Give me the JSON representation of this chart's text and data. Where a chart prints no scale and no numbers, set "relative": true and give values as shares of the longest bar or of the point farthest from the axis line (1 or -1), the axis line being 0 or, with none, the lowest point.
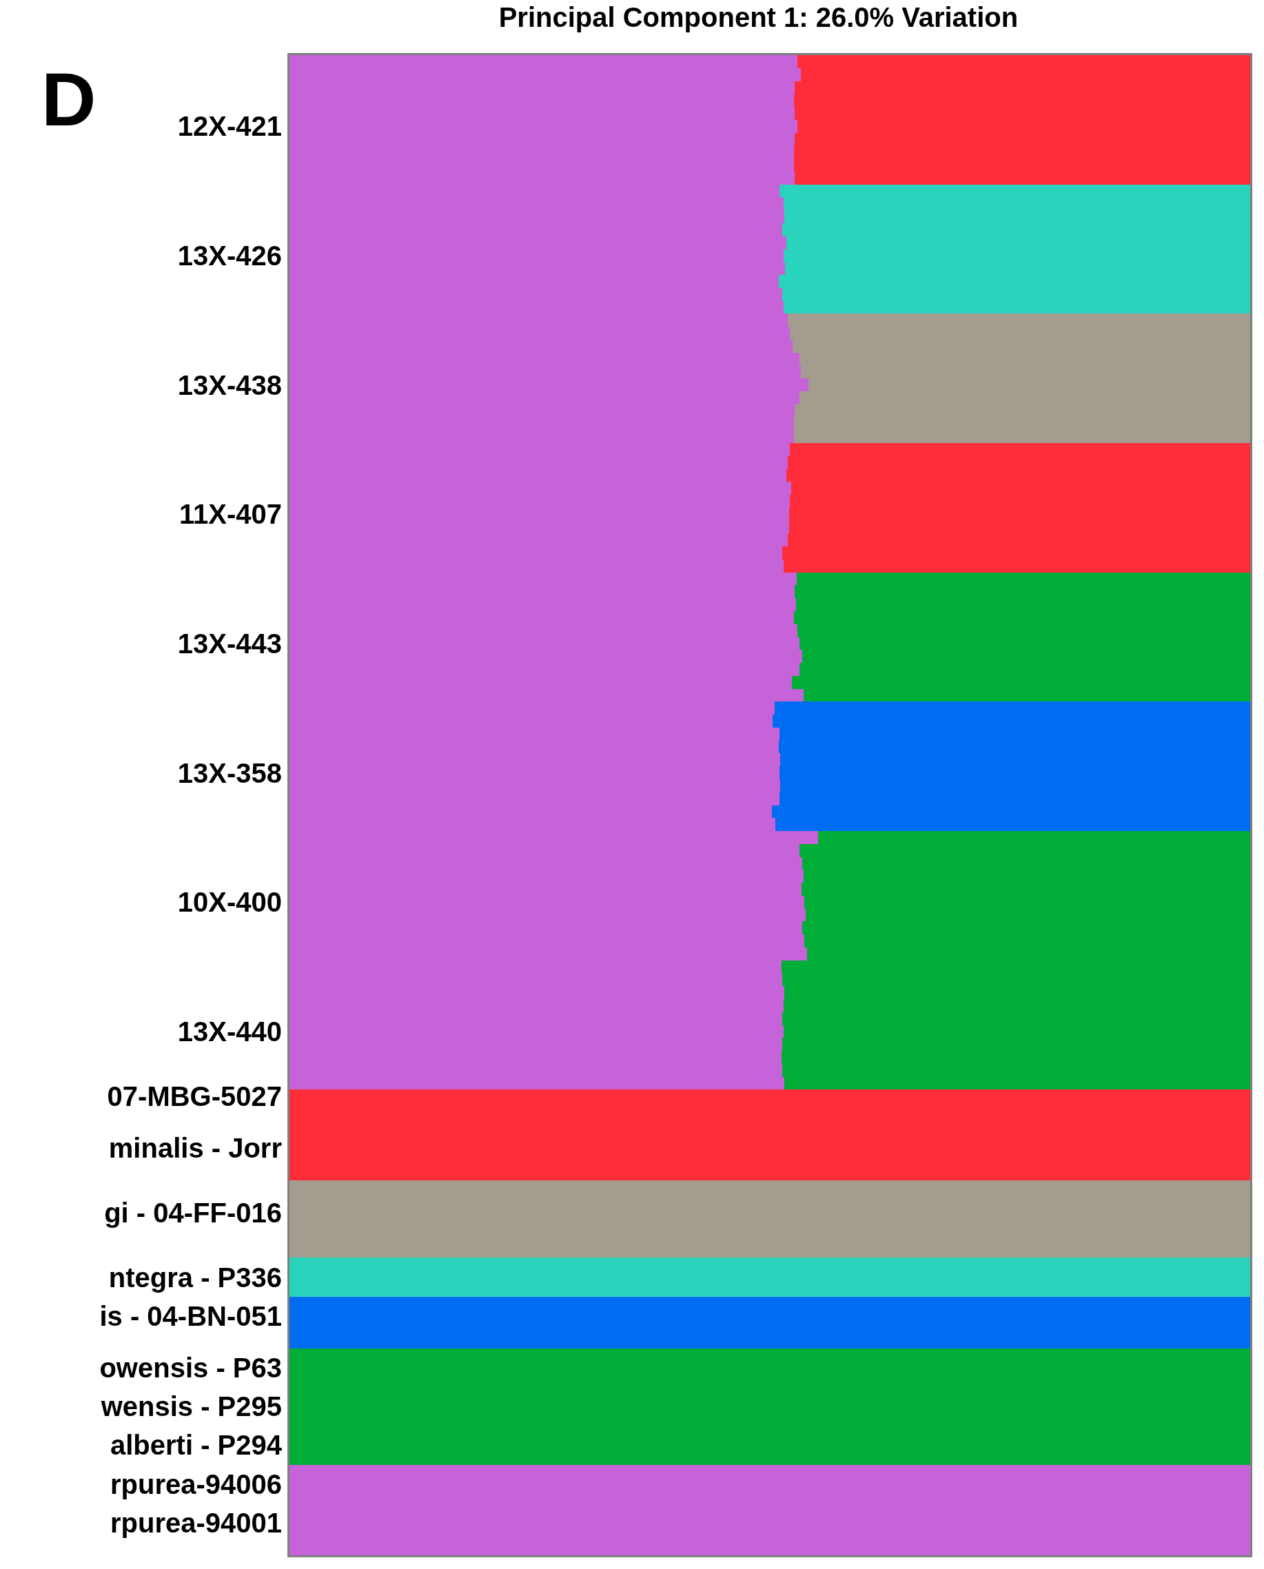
{
  "chart_data": {
    "type": "bar",
    "orientation": "horizontal",
    "stacked": true,
    "relative": true,
    "title": "Principal Component 1: 26.0% Variation",
    "annotations": [
      "D"
    ],
    "tick_labels": "y",
    "categories": [
      null,
      null,
      null,
      null,
      null,
      "12X-421",
      null,
      null,
      null,
      null,
      null,
      null,
      null,
      null,
      null,
      "13X-426",
      null,
      null,
      null,
      null,
      null,
      null,
      null,
      null,
      null,
      "13X-438",
      null,
      null,
      null,
      null,
      null,
      null,
      null,
      null,
      null,
      "11X-407",
      null,
      null,
      null,
      null,
      null,
      null,
      null,
      null,
      null,
      "13X-443",
      null,
      null,
      null,
      null,
      null,
      null,
      null,
      null,
      null,
      "13X-358",
      null,
      null,
      null,
      null,
      null,
      null,
      null,
      null,
      null,
      "10X-400",
      null,
      null,
      null,
      null,
      null,
      null,
      null,
      null,
      null,
      "13X-440",
      null,
      null,
      null,
      null,
      "07-MBG-5027",
      null,
      null,
      null,
      "minalis - Jorr",
      null,
      null,
      null,
      null,
      "gi - 04-FF-016",
      null,
      null,
      null,
      null,
      "ntegra - P336",
      null,
      null,
      "is - 04-BN-051",
      null,
      null,
      null,
      "owensis - P63",
      null,
      null,
      "wensis - P295",
      null,
      null,
      "alberti - P294",
      null,
      null,
      "rpurea-94006",
      null,
      null,
      "rpurea-94001",
      null,
      null
    ],
    "series": [
      {
        "color": "#c663d9",
        "values": [
          0.529,
          0.532,
          0.526,
          0.525,
          0.526,
          0.529,
          0.526,
          0.525,
          0.525,
          0.526,
          0.51,
          0.514,
          0.515,
          0.513,
          0.517,
          0.514,
          0.516,
          0.509,
          0.513,
          0.514,
          0.519,
          0.521,
          0.524,
          0.531,
          0.532,
          0.54,
          0.531,
          0.526,
          0.525,
          0.525,
          0.521,
          0.519,
          0.517,
          0.522,
          0.521,
          0.52,
          0.52,
          0.519,
          0.513,
          0.514,
          0.528,
          0.526,
          0.527,
          0.525,
          0.529,
          0.531,
          0.534,
          0.531,
          0.523,
          0.535,
          0.505,
          0.503,
          0.51,
          0.509,
          0.511,
          0.51,
          0.511,
          0.51,
          0.502,
          0.506,
          0.55,
          0.531,
          0.534,
          0.535,
          0.533,
          0.536,
          0.537,
          0.534,
          0.536,
          0.539,
          0.512,
          0.513,
          0.515,
          0.514,
          0.513,
          0.514,
          0.513,
          0.512,
          0.513,
          0.515,
          0,
          0,
          0,
          0,
          0,
          0,
          0,
          0,
          0,
          0,
          0,
          0,
          0,
          0,
          0,
          0,
          0,
          0,
          0,
          0,
          0,
          0,
          0,
          0,
          0,
          0,
          0,
          0,
          0,
          1,
          1,
          1,
          1,
          1,
          1,
          1
        ]
      },
      {
        "colors": [
          "#ff2d3a",
          "#ff2d3a",
          "#ff2d3a",
          "#ff2d3a",
          "#ff2d3a",
          "#ff2d3a",
          "#ff2d3a",
          "#ff2d3a",
          "#ff2d3a",
          "#ff2d3a",
          "#2ad3bb",
          "#2ad3bb",
          "#2ad3bb",
          "#2ad3bb",
          "#2ad3bb",
          "#2ad3bb",
          "#2ad3bb",
          "#2ad3bb",
          "#2ad3bb",
          "#2ad3bb",
          "#a59c90",
          "#a59c90",
          "#a59c90",
          "#a59c90",
          "#a59c90",
          "#a59c90",
          "#a59c90",
          "#a59c90",
          "#a59c90",
          "#a59c90",
          "#ff2d3a",
          "#ff2d3a",
          "#ff2d3a",
          "#ff2d3a",
          "#ff2d3a",
          "#ff2d3a",
          "#ff2d3a",
          "#ff2d3a",
          "#ff2d3a",
          "#ff2d3a",
          "#00ad36",
          "#00ad36",
          "#00ad36",
          "#00ad36",
          "#00ad36",
          "#00ad36",
          "#00ad36",
          "#00ad36",
          "#00ad36",
          "#00ad36",
          "#006cf2",
          "#006cf2",
          "#006cf2",
          "#006cf2",
          "#006cf2",
          "#006cf2",
          "#006cf2",
          "#006cf2",
          "#006cf2",
          "#006cf2",
          "#00ad36",
          "#00ad36",
          "#00ad36",
          "#00ad36",
          "#00ad36",
          "#00ad36",
          "#00ad36",
          "#00ad36",
          "#00ad36",
          "#00ad36",
          "#00ad36",
          "#00ad36",
          "#00ad36",
          "#00ad36",
          "#00ad36",
          "#00ad36",
          "#00ad36",
          "#00ad36",
          "#00ad36",
          "#00ad36",
          "#ff2d3a",
          "#ff2d3a",
          "#ff2d3a",
          "#ff2d3a",
          "#ff2d3a",
          "#ff2d3a",
          "#ff2d3a",
          "#a59c90",
          "#a59c90",
          "#a59c90",
          "#a59c90",
          "#a59c90",
          "#a59c90",
          "#2ad3bb",
          "#2ad3bb",
          "#2ad3bb",
          "#006cf2",
          "#006cf2",
          "#006cf2",
          "#006cf2",
          "#00ad36",
          "#00ad36",
          "#00ad36",
          "#00ad36",
          "#00ad36",
          "#00ad36",
          "#00ad36",
          "#00ad36",
          "#00ad36",
          "#c663d9",
          "#c663d9",
          "#c663d9",
          "#c663d9",
          "#c663d9",
          "#c663d9",
          "#c663d9"
        ],
        "values": [
          0.471,
          0.468,
          0.474,
          0.475,
          0.474,
          0.471,
          0.474,
          0.475,
          0.475,
          0.474,
          0.49,
          0.486,
          0.485,
          0.487,
          0.483,
          0.486,
          0.484,
          0.491,
          0.487,
          0.486,
          0.481,
          0.479,
          0.476,
          0.469,
          0.468,
          0.46,
          0.469,
          0.474,
          0.475,
          0.475,
          0.479,
          0.481,
          0.483,
          0.478,
          0.479,
          0.48,
          0.48,
          0.481,
          0.487,
          0.486,
          0.472,
          0.474,
          0.473,
          0.475,
          0.471,
          0.469,
          0.466,
          0.469,
          0.477,
          0.465,
          0.495,
          0.497,
          0.49,
          0.491,
          0.489,
          0.49,
          0.489,
          0.49,
          0.498,
          0.494,
          0.45,
          0.469,
          0.466,
          0.465,
          0.467,
          0.464,
          0.463,
          0.466,
          0.464,
          0.461,
          0.488,
          0.487,
          0.485,
          0.486,
          0.487,
          0.486,
          0.487,
          0.488,
          0.487,
          0.485,
          1,
          1,
          1,
          1,
          1,
          1,
          1,
          1,
          1,
          1,
          1,
          1,
          1,
          1,
          1,
          1,
          1,
          1,
          1,
          1,
          1,
          1,
          1,
          1,
          1,
          1,
          1,
          1,
          1,
          0,
          0,
          0,
          0,
          0,
          0,
          0
        ]
      }
    ]
  }
}
